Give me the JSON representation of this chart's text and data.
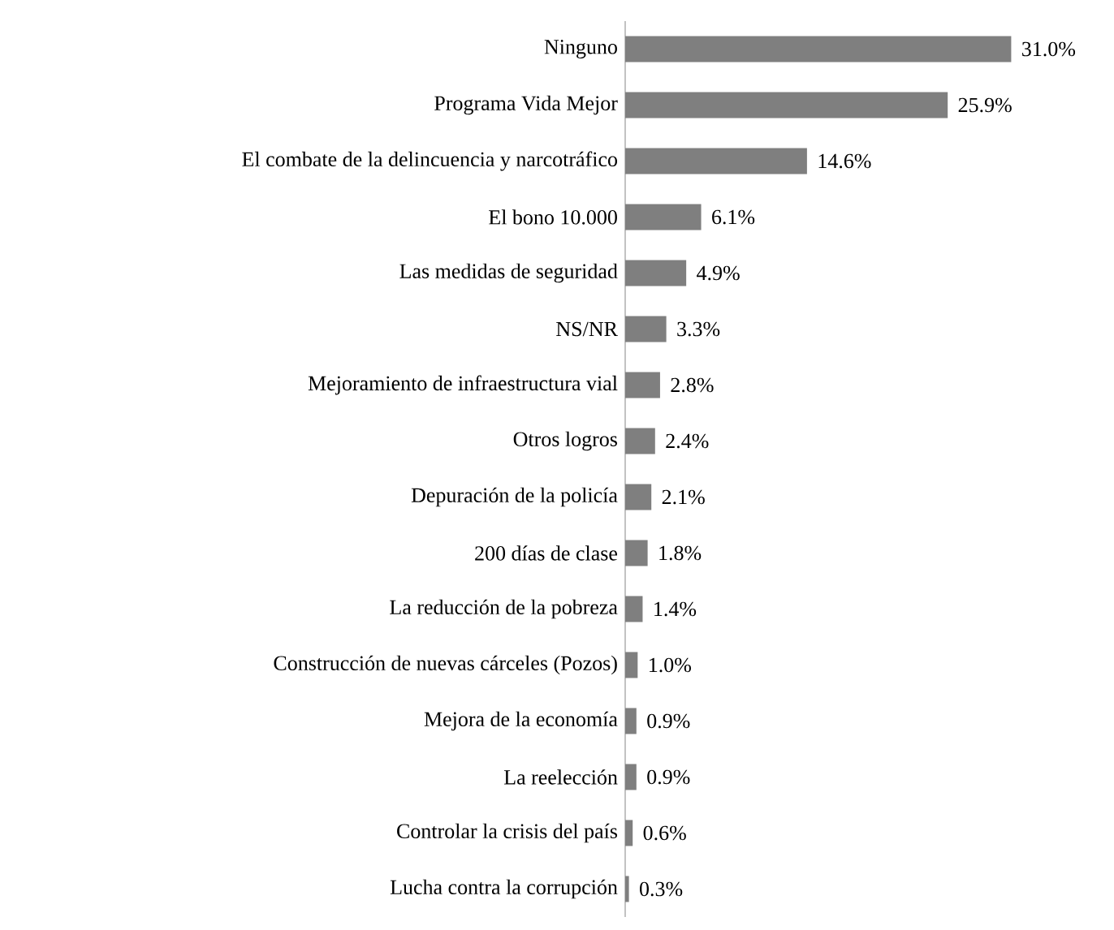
{
  "chart_data": {
    "type": "bar",
    "orientation": "horizontal",
    "categories": [
      "Ninguno",
      "Programa Vida Mejor",
      "El combate de la delincuencia y narcotráfico",
      "El bono 10.000",
      "Las medidas de seguridad",
      "NS/NR",
      "Mejoramiento de infraestructura vial",
      "Otros logros",
      "Depuración de la policía",
      "200 días de clase",
      "La reducción de la pobreza",
      "Construcción de nuevas cárceles (Pozos)",
      "Mejora de la economía",
      "La reelección",
      "Controlar la crisis del país",
      "Lucha contra la corrupción"
    ],
    "values": [
      31.0,
      25.9,
      14.6,
      6.1,
      4.9,
      3.3,
      2.8,
      2.4,
      2.1,
      1.8,
      1.4,
      1.0,
      0.9,
      0.9,
      0.6,
      0.3
    ],
    "value_labels": [
      "31.0%",
      "25.9%",
      "14.6%",
      "6.1%",
      "4.9%",
      "3.3%",
      "2.8%",
      "2.4%",
      "2.1%",
      "1.8%",
      "1.4%",
      "1.0%",
      "0.9%",
      "0.9%",
      "0.6%",
      "0.3%"
    ],
    "color": "#7f7f7f",
    "tick_labels": "y"
  }
}
